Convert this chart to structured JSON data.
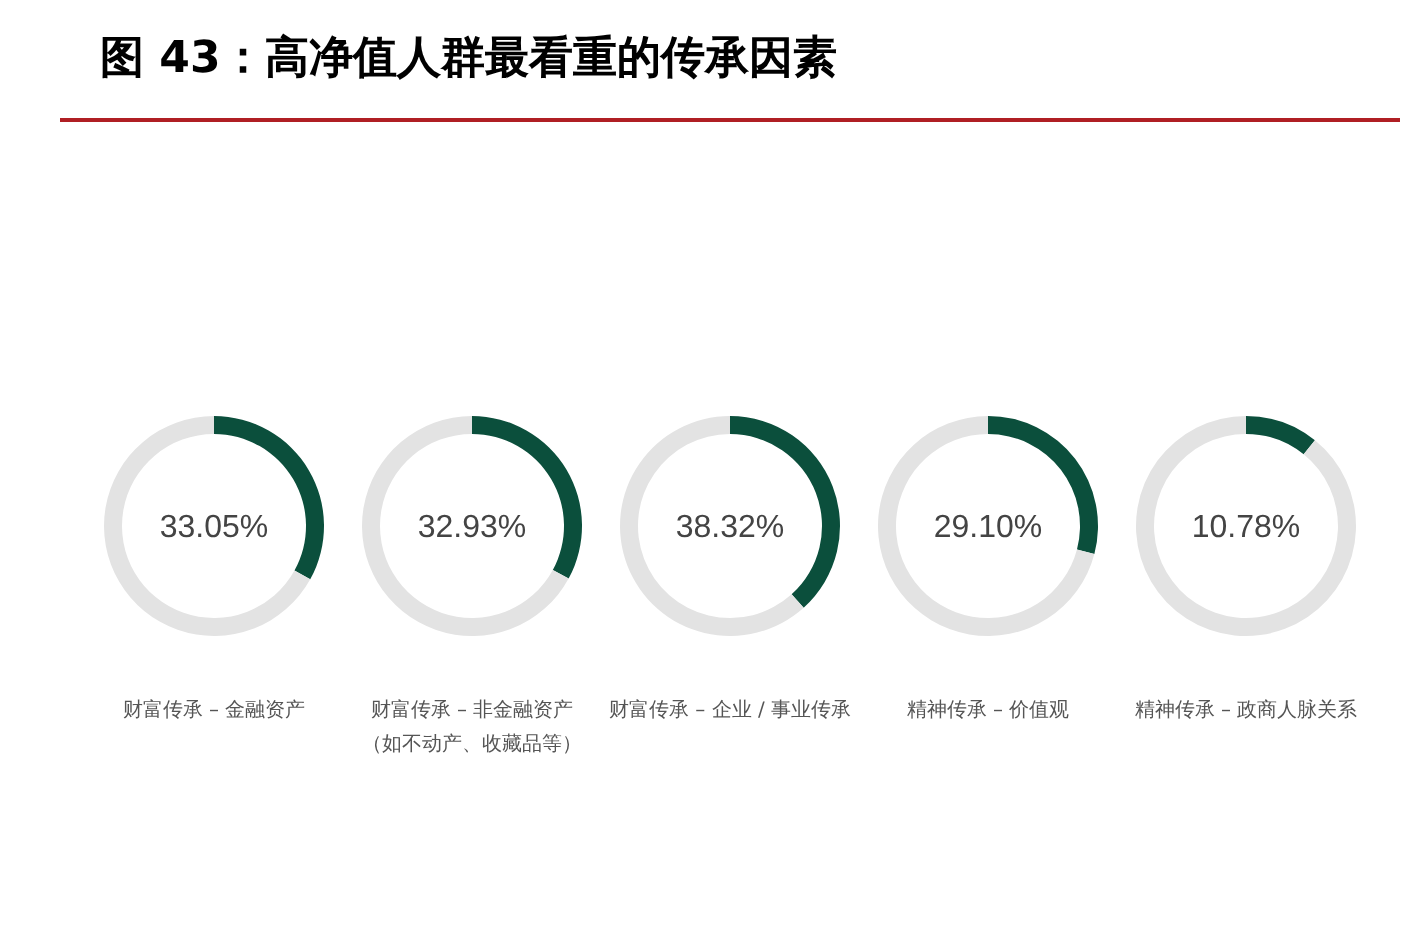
{
  "chart_data": [
    {
      "type": "donut",
      "title": "图 43：高净值人群最看重的传承因素",
      "xlabel": "财富传承 – 金融资产",
      "categories": [
        null,
        null
      ],
      "values": [
        33.05,
        66.95
      ],
      "colors": [
        "#0b4f3c",
        "#e3e3e3"
      ],
      "annotations": [
        "33.05%"
      ]
    },
    {
      "type": "donut",
      "xlabel": "财富传承 – 非金融资产（如不动产、收藏品等）",
      "categories": [
        null,
        null
      ],
      "values": [
        32.93,
        67.07
      ],
      "colors": [
        "#0b4f3c",
        "#e3e3e3"
      ],
      "annotations": [
        "32.93%"
      ]
    },
    {
      "type": "donut",
      "xlabel": "财富传承 – 企业 / 事业传承",
      "categories": [
        null,
        null
      ],
      "values": [
        38.32,
        61.68
      ],
      "colors": [
        "#0b4f3c",
        "#e3e3e3"
      ],
      "annotations": [
        "38.32%"
      ]
    },
    {
      "type": "donut",
      "xlabel": "精神传承 – 价值观",
      "categories": [
        null,
        null
      ],
      "values": [
        29.1,
        70.9
      ],
      "colors": [
        "#0b4f3c",
        "#e3e3e3"
      ],
      "annotations": [
        "29.10%"
      ]
    },
    {
      "type": "donut",
      "xlabel": "精神传承 – 政商人脉关系",
      "categories": [
        null,
        null
      ],
      "values": [
        10.78,
        89.22
      ],
      "colors": [
        "#0b4f3c",
        "#e3e3e3"
      ],
      "annotations": [
        "10.78%"
      ]
    }
  ]
}
